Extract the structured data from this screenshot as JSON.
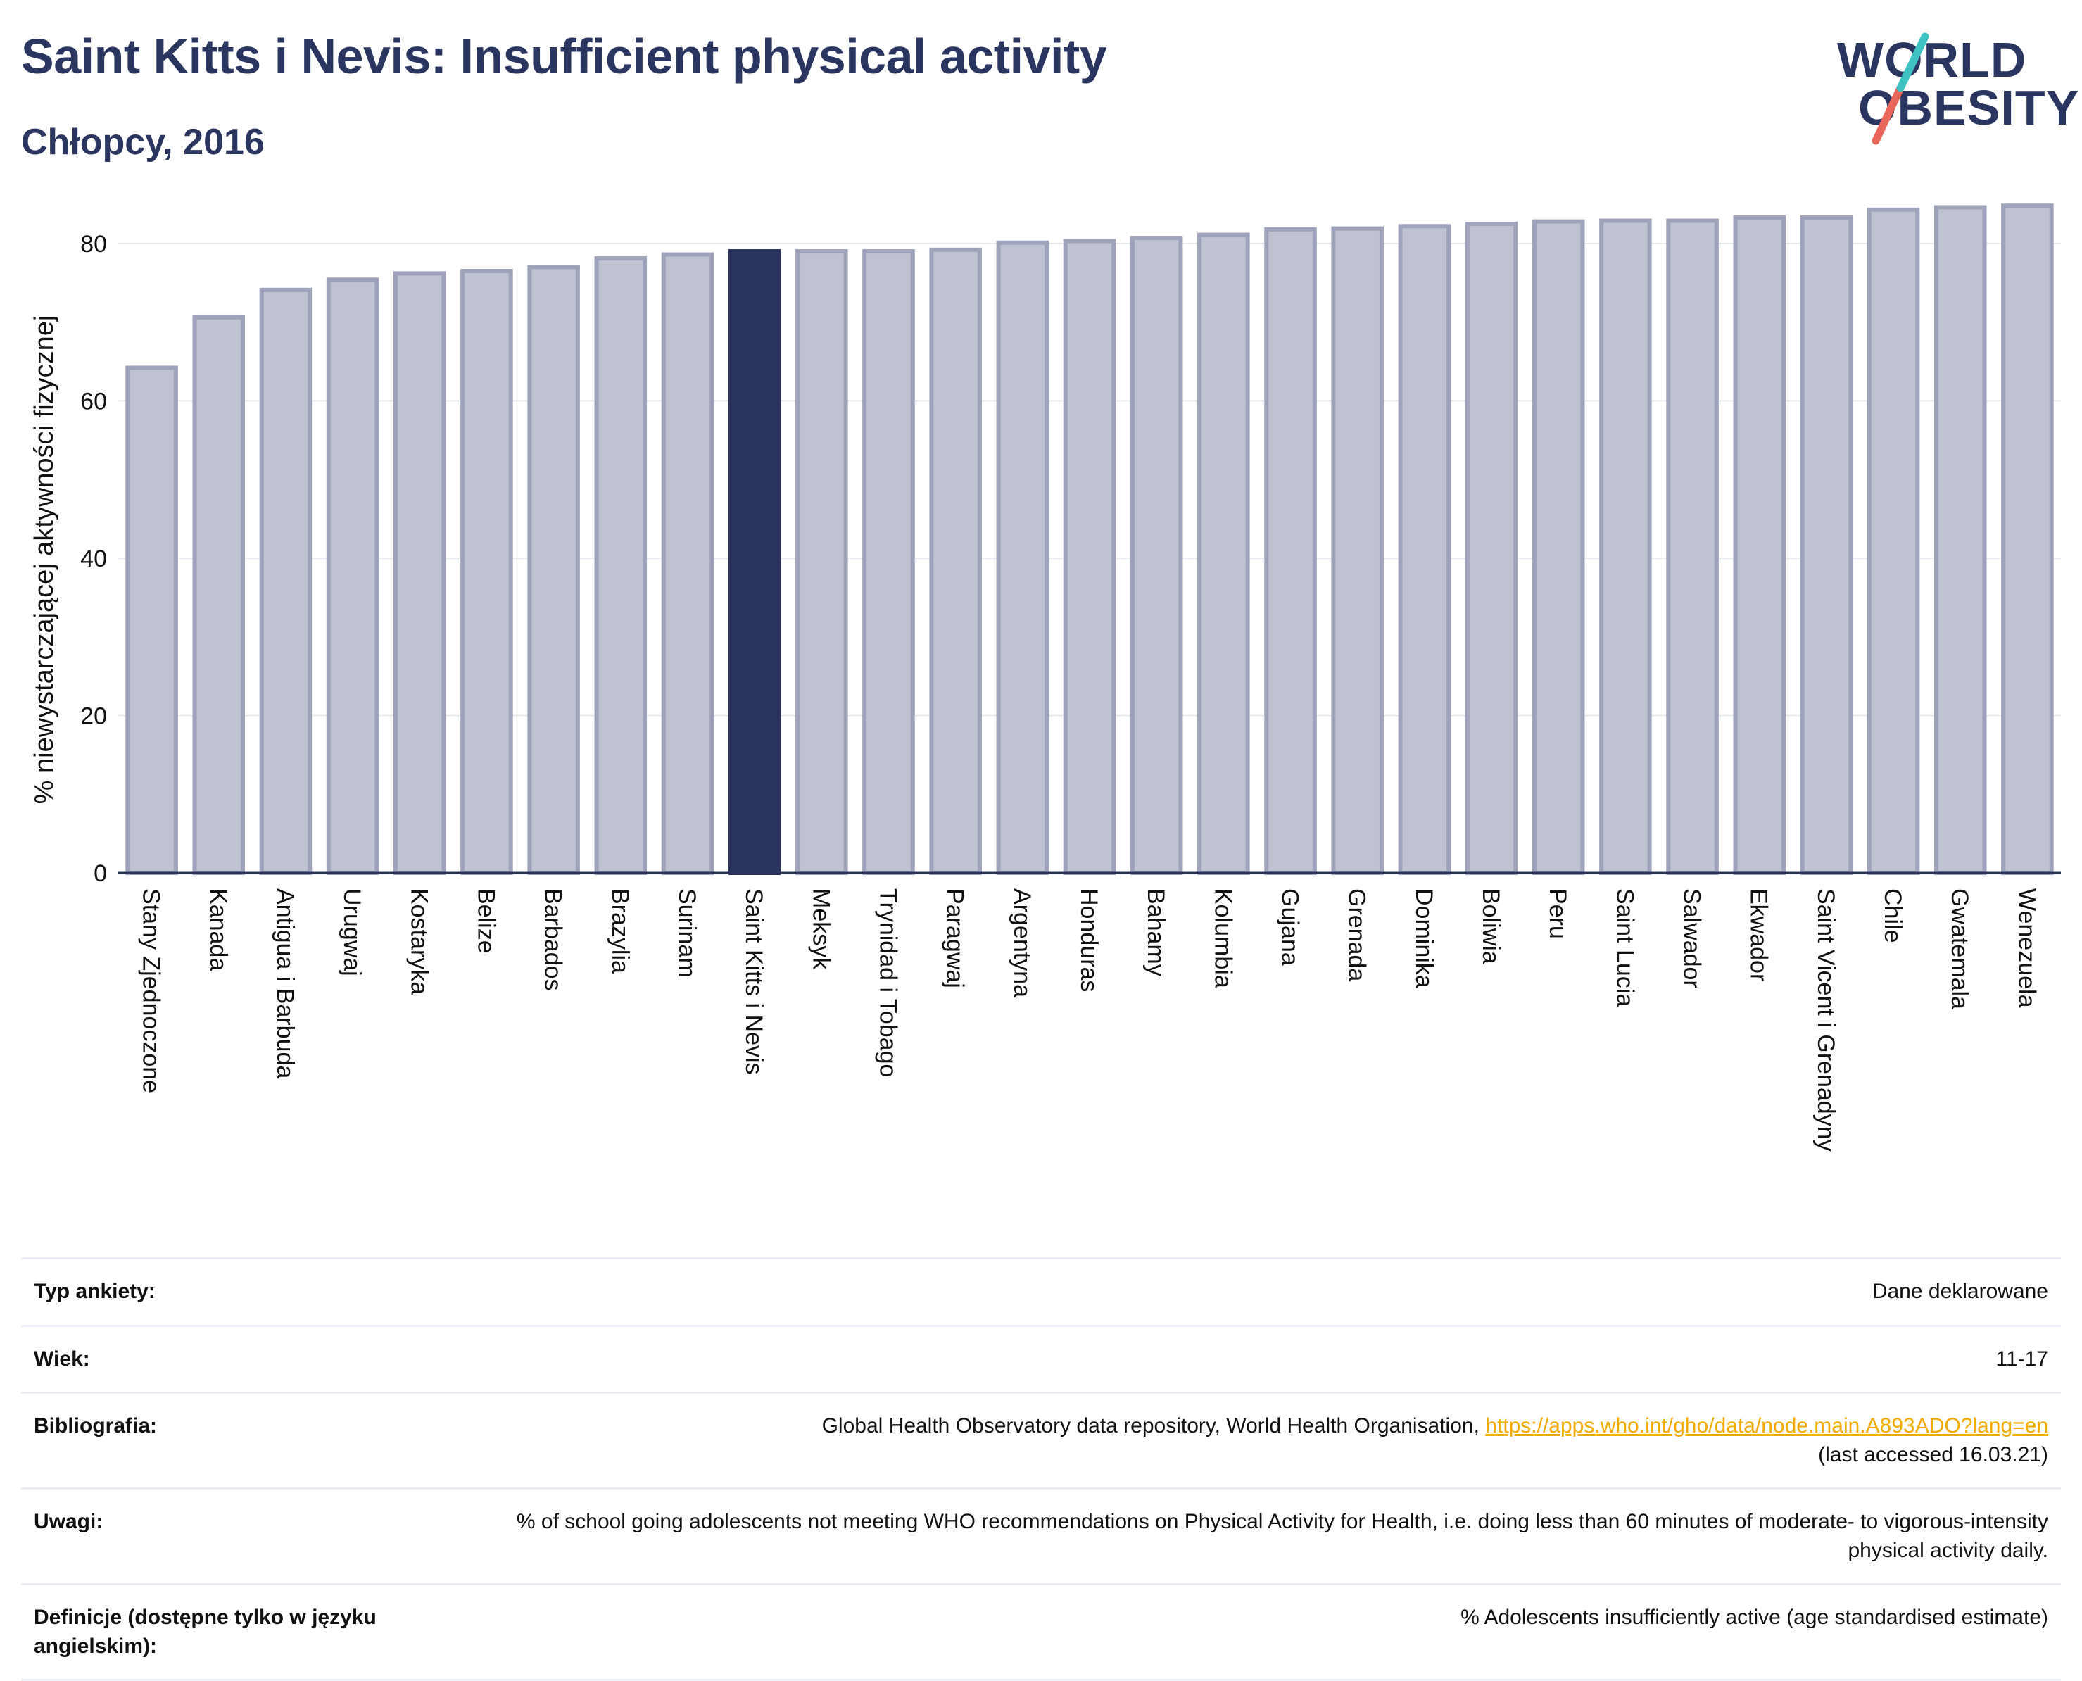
{
  "header": {
    "title": "Saint Kitts i Nevis: Insufficient physical activity",
    "subtitle": "Chłopcy, 2016"
  },
  "logo": {
    "line1": "WORLD",
    "line2": "OBESITY"
  },
  "colors": {
    "highlight": "#29335c",
    "bar_fill": "#bfc2d0",
    "bar_stroke": "#9ea3bb",
    "text": "#29335c",
    "link": "#f2a900"
  },
  "chart_data": {
    "type": "bar",
    "ylabel": "% niewystarczającej aktywności fizycznej",
    "xlabel": "",
    "ylim": [
      0,
      85
    ],
    "yticks": [
      0,
      20,
      40,
      60,
      80
    ],
    "grid": true,
    "highlight_category": "Saint Kitts i Nevis",
    "categories": [
      "Stany Zjednoczone",
      "Kanada",
      "Antigua i Barbuda",
      "Urugwaj",
      "Kostaryka",
      "Belize",
      "Barbados",
      "Brazylia",
      "Surinam",
      "Saint Kitts i Nevis",
      "Meksyk",
      "Trynidad i Tobago",
      "Paragwaj",
      "Argentyna",
      "Honduras",
      "Bahamy",
      "Kolumbia",
      "Gujana",
      "Grenada",
      "Dominika",
      "Boliwia",
      "Peru",
      "Saint Lucia",
      "Salwador",
      "Ekwador",
      "Saint Vicent i Grenadyny",
      "Chile",
      "Gwatemala",
      "Wenezuela"
    ],
    "values": [
      64.2,
      70.6,
      74.1,
      75.4,
      76.2,
      76.5,
      77.0,
      78.1,
      78.6,
      79.0,
      79.0,
      79.0,
      79.2,
      80.1,
      80.3,
      80.7,
      81.1,
      81.8,
      81.9,
      82.2,
      82.5,
      82.8,
      82.9,
      82.9,
      83.3,
      83.3,
      84.3,
      84.6,
      84.8
    ]
  },
  "info": {
    "rows": [
      {
        "key": "Typ ankiety:",
        "value": "Dane deklarowane"
      },
      {
        "key": "Wiek:",
        "value": "11-17"
      },
      {
        "key": "Bibliografia:",
        "value": "Global Health Observatory data repository, World Health Organisation, ",
        "link": "https://apps.who.int/gho/data/node.main.A893ADO?lang=en",
        "suffix": "(last accessed 16.03.21)"
      },
      {
        "key": "Uwagi:",
        "value": "% of school going adolescents not meeting WHO recommendations on Physical Activity for Health, i.e. doing less than 60 minutes of moderate- to vigorous-intensity physical activity daily."
      },
      {
        "key": "Definicje (dostępne tylko w języku angielskim):",
        "value": "% Adolescents insufficiently active (age standardised estimate)"
      }
    ]
  }
}
